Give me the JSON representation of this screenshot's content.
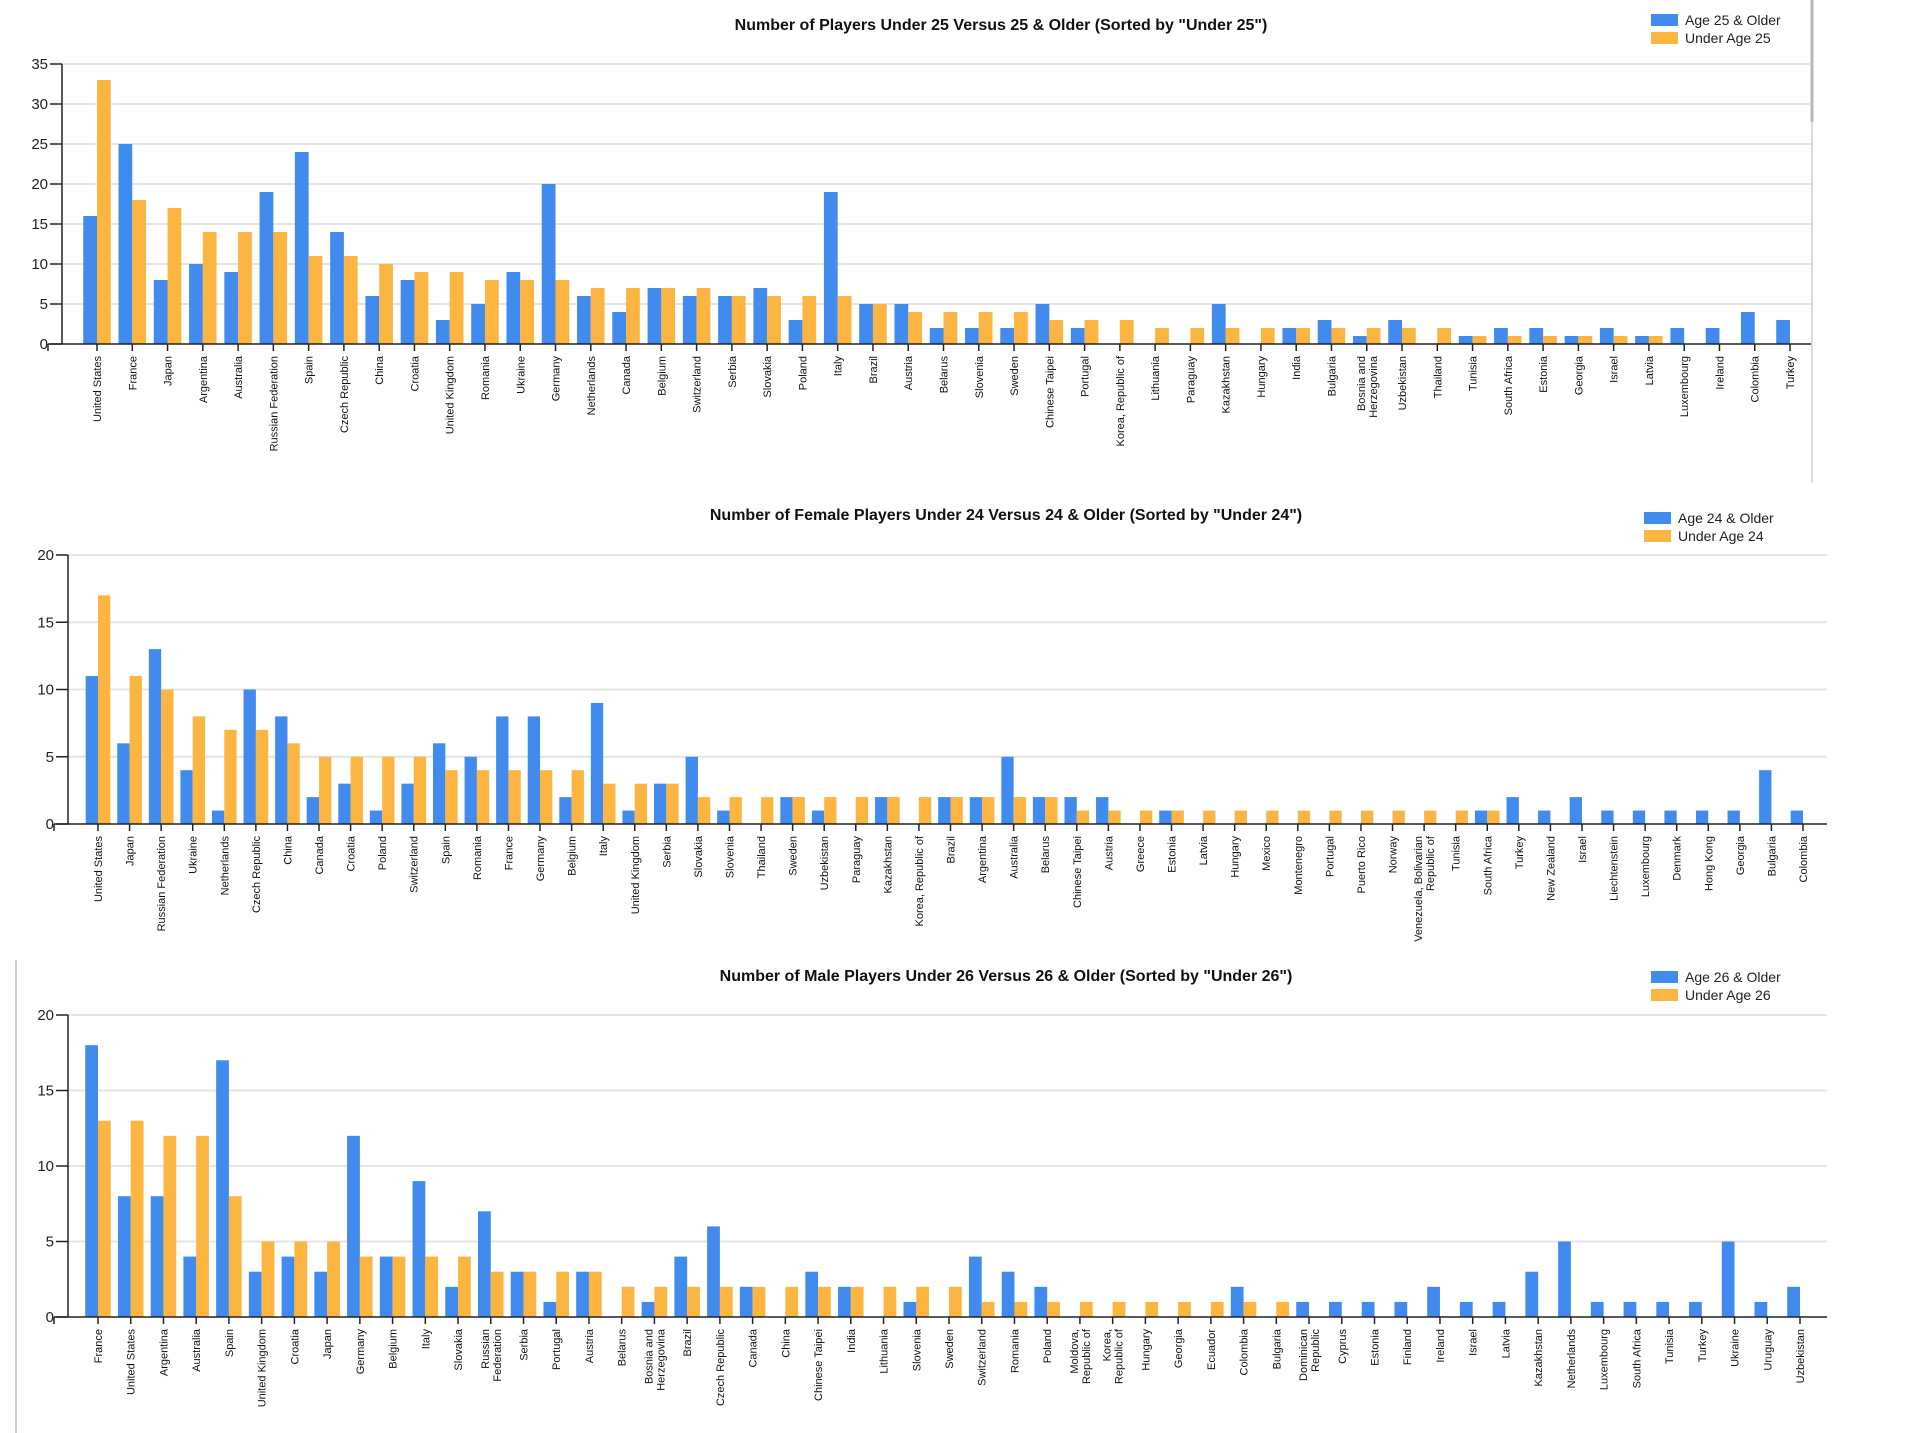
{
  "colors": {
    "older": "#418BEE",
    "younger": "#FDB541"
  },
  "chart_data": [
    {
      "type": "bar",
      "title": "Number of Players Under 25 Versus 25 & Older (Sorted by \"Under 25\")",
      "legend": [
        "Age 25 & Older",
        "Under Age 25"
      ],
      "legend_position": "top-right",
      "ylim": [
        0,
        35
      ],
      "yticks": [
        0,
        5,
        10,
        15,
        20,
        25,
        30,
        35
      ],
      "grid": true,
      "categories": [
        "United States",
        "France",
        "Japan",
        "Argentina",
        "Australia",
        "Russian Federation",
        "Spain",
        "Czech Republic",
        "China",
        "Croatia",
        "United Kingdom",
        "Romania",
        "Ukraine",
        "Germany",
        "Netherlands",
        "Canada",
        "Belgium",
        "Switzerland",
        "Serbia",
        "Slovakia",
        "Poland",
        "Italy",
        "Brazil",
        "Austria",
        "Belarus",
        "Slovenia",
        "Sweden",
        "Chinese Taipei",
        "Portugal",
        "Korea, Republic of",
        "Lithuania",
        "Paraguay",
        "Kazakhstan",
        "Hungary",
        "India",
        "Bulgaria",
        "Bosnia and\nHerzegovina",
        "Uzbekistan",
        "Thailand",
        "Tunisia",
        "South Africa",
        "Estonia",
        "Georgia",
        "Israel",
        "Latvia",
        "Luxembourg",
        "Ireland",
        "Colombia",
        "Turkey"
      ],
      "series": [
        {
          "name": "Age 25 & Older",
          "values": [
            16,
            25,
            8,
            10,
            9,
            19,
            24,
            14,
            6,
            8,
            3,
            5,
            9,
            20,
            6,
            4,
            7,
            6,
            6,
            7,
            3,
            19,
            5,
            5,
            2,
            2,
            2,
            5,
            2,
            0,
            0,
            0,
            5,
            0,
            2,
            3,
            1,
            3,
            0,
            1,
            2,
            2,
            1,
            2,
            1,
            2,
            2,
            4,
            3
          ]
        },
        {
          "name": "Under Age 25",
          "values": [
            33,
            18,
            17,
            14,
            14,
            14,
            11,
            11,
            10,
            9,
            9,
            8,
            8,
            8,
            7,
            7,
            7,
            7,
            6,
            6,
            6,
            6,
            5,
            4,
            4,
            4,
            4,
            3,
            3,
            3,
            2,
            2,
            2,
            2,
            2,
            2,
            2,
            2,
            2,
            1,
            1,
            1,
            1,
            1,
            1,
            0,
            0,
            0,
            0
          ]
        }
      ]
    },
    {
      "type": "bar",
      "title": "Number of Female Players Under 24 Versus 24 & Older (Sorted by \"Under 24\")",
      "legend": [
        "Age 24 & Older",
        "Under Age 24"
      ],
      "legend_position": "top-right",
      "ylim": [
        0,
        20
      ],
      "yticks": [
        0,
        5,
        10,
        15,
        20
      ],
      "grid": true,
      "categories": [
        "United States",
        "Japan",
        "Russian Federation",
        "Ukraine",
        "Netherlands",
        "Czech Republic",
        "China",
        "Canada",
        "Croatia",
        "Poland",
        "Switzerland",
        "Spain",
        "Romania",
        "France",
        "Germany",
        "Belgium",
        "Italy",
        "United Kingdom",
        "Serbia",
        "Slovakia",
        "Slovenia",
        "Thailand",
        "Sweden",
        "Uzbekistan",
        "Paraguay",
        "Kazakhstan",
        "Korea, Republic of",
        "Brazil",
        "Argentina",
        "Australia",
        "Belarus",
        "Chinese Taipei",
        "Austria",
        "Greece",
        "Estonia",
        "Latvia",
        "Hungary",
        "Mexico",
        "Montenegro",
        "Portugal",
        "Puerto Rico",
        "Norway",
        "Venezuela, Bolivarian\nRepublic of",
        "Tunisia",
        "South Africa",
        "Turkey",
        "New Zealand",
        "Israel",
        "Liechtenstein",
        "Luxembourg",
        "Denmark",
        "Hong Kong",
        "Georgia",
        "Bulgaria",
        "Colombia"
      ],
      "series": [
        {
          "name": "Age 24 & Older",
          "values": [
            11,
            6,
            13,
            4,
            1,
            10,
            8,
            2,
            3,
            1,
            3,
            6,
            5,
            8,
            8,
            2,
            9,
            1,
            3,
            5,
            1,
            0,
            2,
            1,
            0,
            2,
            0,
            2,
            2,
            5,
            2,
            2,
            2,
            0,
            1,
            0,
            0,
            0,
            0,
            0,
            0,
            0,
            0,
            0,
            1,
            2,
            1,
            2,
            1,
            1,
            1,
            1,
            1,
            4,
            1
          ]
        },
        {
          "name": "Under Age 24",
          "values": [
            17,
            11,
            10,
            8,
            7,
            7,
            6,
            5,
            5,
            5,
            5,
            4,
            4,
            4,
            4,
            4,
            3,
            3,
            3,
            2,
            2,
            2,
            2,
            2,
            2,
            2,
            2,
            2,
            2,
            2,
            2,
            1,
            1,
            1,
            1,
            1,
            1,
            1,
            1,
            1,
            1,
            1,
            1,
            1,
            1,
            0,
            0,
            0,
            0,
            0,
            0,
            0,
            0,
            0,
            0
          ]
        }
      ]
    },
    {
      "type": "bar",
      "title": "Number of Male Players Under 26 Versus 26 & Older (Sorted by \"Under 26\")",
      "legend": [
        "Age 26 & Older",
        "Under Age 26"
      ],
      "legend_position": "top-right",
      "ylim": [
        0,
        20
      ],
      "yticks": [
        0,
        5,
        10,
        15,
        20
      ],
      "grid": true,
      "categories": [
        "France",
        "United States",
        "Argentina",
        "Australia",
        "Spain",
        "United Kingdom",
        "Croatia",
        "Japan",
        "Germany",
        "Belgium",
        "Italy",
        "Slovakia",
        "Russian\nFederation",
        "Serbia",
        "Portugal",
        "Austria",
        "Belarus",
        "Bosnia and\nHerzegovina",
        "Brazil",
        "Czech Republic",
        "Canada",
        "China",
        "Chinese Taipei",
        "India",
        "Lithuania",
        "Slovenia",
        "Sweden",
        "Switzerland",
        "Romania",
        "Poland",
        "Moldova,\nRepublic of",
        "Korea,\nRepublic of",
        "Hungary",
        "Georgia",
        "Ecuador",
        "Colombia",
        "Bulgaria",
        "Dominican\nRepublic",
        "Cyprus",
        "Estonia",
        "Finland",
        "Ireland",
        "Israel",
        "Latvia",
        "Kazakhstan",
        "Netherlands",
        "Luxembourg",
        "South Africa",
        "Tunisia",
        "Turkey",
        "Ukraine",
        "Uruguay",
        "Uzbekistan"
      ],
      "series": [
        {
          "name": "Age 26 & Older",
          "values": [
            18,
            8,
            8,
            4,
            17,
            3,
            4,
            3,
            12,
            4,
            9,
            2,
            7,
            3,
            1,
            3,
            0,
            1,
            4,
            6,
            2,
            0,
            3,
            2,
            0,
            1,
            0,
            4,
            3,
            2,
            0,
            0,
            0,
            0,
            0,
            2,
            0,
            1,
            1,
            1,
            1,
            2,
            1,
            1,
            3,
            5,
            1,
            1,
            1,
            1,
            5,
            1,
            2
          ]
        },
        {
          "name": "Under Age 26",
          "values": [
            13,
            13,
            12,
            12,
            8,
            5,
            5,
            5,
            4,
            4,
            4,
            4,
            3,
            3,
            3,
            3,
            2,
            2,
            2,
            2,
            2,
            2,
            2,
            2,
            2,
            2,
            2,
            1,
            1,
            1,
            1,
            1,
            1,
            1,
            1,
            1,
            1,
            0,
            0,
            0,
            0,
            0,
            0,
            0,
            0,
            0,
            0,
            0,
            0,
            0,
            0,
            0,
            0
          ]
        }
      ]
    }
  ]
}
